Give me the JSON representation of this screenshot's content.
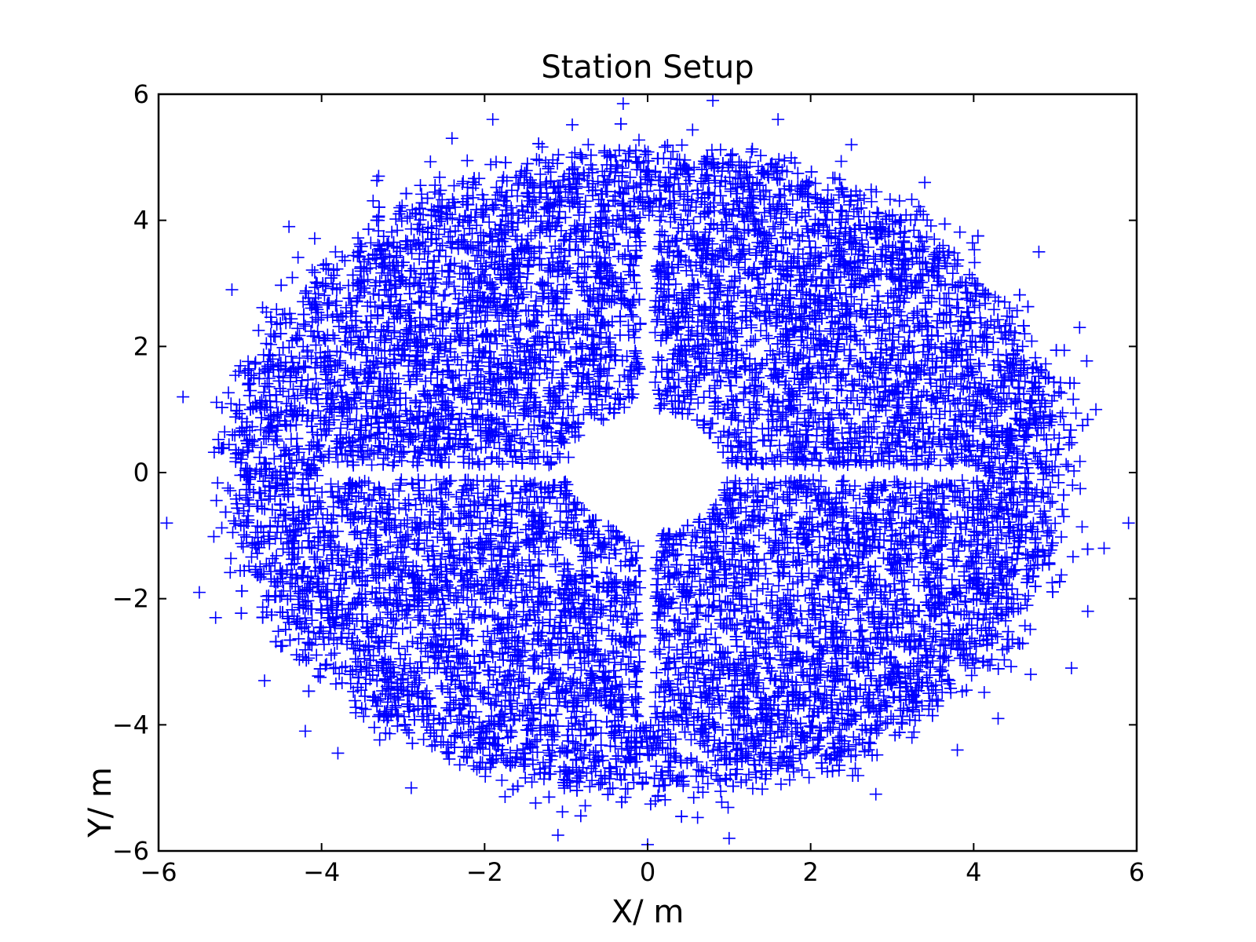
{
  "chart_data": {
    "type": "scatter",
    "title": "Station Setup",
    "xlabel": "X/ m",
    "ylabel": "Y/ m",
    "xlim": [
      -6,
      6
    ],
    "ylim": [
      -6,
      6
    ],
    "x_ticks": [
      -6,
      -4,
      -2,
      0,
      2,
      4,
      6
    ],
    "y_ticks": [
      -6,
      -4,
      -2,
      0,
      2,
      4,
      6
    ],
    "x_tick_labels": [
      "−6",
      "−4",
      "−2",
      "0",
      "2",
      "4",
      "6"
    ],
    "y_tick_labels": [
      "−6",
      "−4",
      "−2",
      "0",
      "2",
      "4",
      "6"
    ],
    "grid": false,
    "legend": "none",
    "marker": "plus",
    "color": "#0000ff",
    "series": [
      {
        "distribution": "dense points filling an ellipse centered at (0,0), semi-axes about 5.8 (x) and 5.8 (y), excluding a central disc of radius about 0.95 and narrow strips along both axes",
        "points": [
          [
            -5.9,
            -0.8
          ],
          [
            5.9,
            -0.8
          ],
          [
            0.0,
            -5.9
          ],
          [
            0.8,
            5.9
          ],
          [
            -0.3,
            5.85
          ],
          [
            -4.4,
            3.9
          ],
          [
            4.8,
            3.5
          ],
          [
            -4.7,
            -3.3
          ],
          [
            4.7,
            -3.2
          ],
          [
            -3.8,
            -4.45
          ],
          [
            3.8,
            -4.4
          ],
          [
            -3.3,
            4.7
          ],
          [
            3.4,
            4.6
          ],
          [
            5.3,
            2.3
          ],
          [
            -5.7,
            1.2
          ],
          [
            5.6,
            -1.2
          ],
          [
            -5.5,
            -1.9
          ],
          [
            5.2,
            -3.1
          ],
          [
            -2.4,
            5.3
          ],
          [
            2.5,
            5.2
          ],
          [
            -1.1,
            -5.75
          ],
          [
            1.0,
            -5.8
          ],
          [
            -5.1,
            2.9
          ],
          [
            5.5,
            1.0
          ],
          [
            -2.9,
            -5.0
          ],
          [
            2.8,
            -5.1
          ],
          [
            -4.2,
            -4.1
          ],
          [
            4.3,
            -3.9
          ],
          [
            -1.9,
            5.6
          ],
          [
            1.6,
            5.6
          ],
          [
            -5.3,
            -2.3
          ],
          [
            5.4,
            -2.2
          ],
          [
            -3.1,
            3.2
          ],
          [
            3.0,
            -3.1
          ],
          [
            -1.5,
            1.5
          ],
          [
            1.6,
            -1.4
          ],
          [
            -2.2,
            -2.2
          ],
          [
            2.3,
            2.4
          ],
          [
            -4.0,
            0.6
          ],
          [
            4.0,
            -0.6
          ],
          [
            -0.5,
            3.2
          ],
          [
            0.6,
            -3.1
          ],
          [
            -3.5,
            -1.2
          ],
          [
            3.6,
            1.3
          ],
          [
            -1.2,
            -4.0
          ],
          [
            1.3,
            4.1
          ],
          [
            -4.6,
            1.8
          ],
          [
            4.6,
            2.0
          ],
          [
            -2.7,
            0.9
          ],
          [
            2.8,
            -0.9
          ]
        ]
      }
    ]
  }
}
